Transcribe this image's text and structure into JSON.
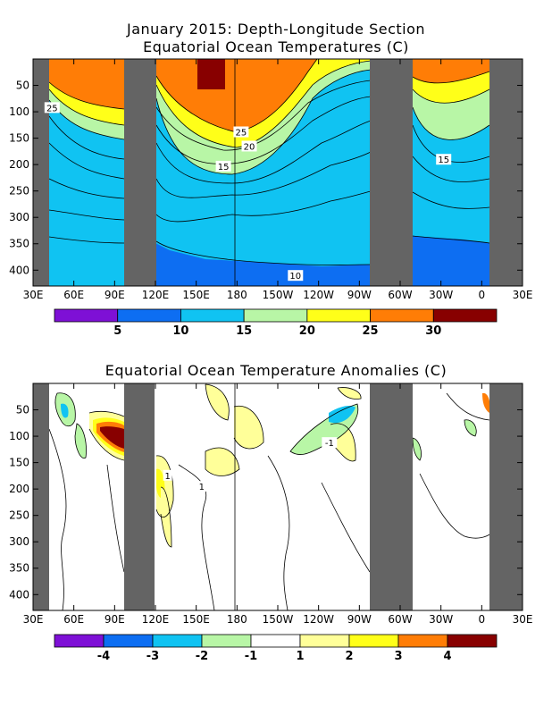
{
  "chart_data": [
    {
      "type": "heatmap",
      "title": "January 2015: Depth-Longitude Section",
      "subtitle": "Equatorial Ocean Temperatures (C)",
      "x_tick_labels": [
        "30E",
        "60E",
        "90E",
        "120E",
        "150E",
        "180",
        "150W",
        "120W",
        "90W",
        "60W",
        "30W",
        "0",
        "30E"
      ],
      "x_tick_lon": [
        30,
        60,
        90,
        120,
        150,
        180,
        210,
        240,
        270,
        300,
        330,
        360,
        390
      ],
      "y_tick_labels": [
        "50",
        "100",
        "150",
        "200",
        "250",
        "300",
        "350",
        "400"
      ],
      "y_ticks": [
        50,
        100,
        150,
        200,
        250,
        300,
        350,
        400
      ],
      "xlim": [
        30,
        390
      ],
      "ylim": [
        0,
        430
      ],
      "land_lon_ranges": [
        [
          30,
          44
        ],
        [
          98,
          121
        ],
        [
          287,
          303
        ],
        [
          297,
          330
        ],
        [
          362,
          390
        ]
      ],
      "colorbar_levels": [
        5,
        10,
        15,
        20,
        25,
        30
      ],
      "colorbar_labels": [
        "5",
        "10",
        "15",
        "20",
        "25",
        "30"
      ],
      "colorbar_colors": [
        "#7e10d6",
        "#0d6ef2",
        "#10c3f2",
        "#b8f6a6",
        "#ffff19",
        "#ff7d06",
        "#880000"
      ],
      "contour_labels": [
        {
          "text": "25",
          "lon": 44,
          "depth": 92
        },
        {
          "text": "25",
          "lon": 183,
          "depth": 138
        },
        {
          "text": "20",
          "lon": 189,
          "depth": 165
        },
        {
          "text": "15",
          "lon": 170,
          "depth": 203
        },
        {
          "text": "15",
          "lon": 332,
          "depth": 190
        },
        {
          "text": "10",
          "lon": 223,
          "depth": 410
        }
      ]
    },
    {
      "type": "heatmap",
      "title": "Equatorial Ocean Temperature Anomalies (C)",
      "x_tick_labels": [
        "30E",
        "60E",
        "90E",
        "120E",
        "150E",
        "180",
        "150W",
        "120W",
        "90W",
        "60W",
        "30W",
        "0",
        "30E"
      ],
      "x_tick_lon": [
        30,
        60,
        90,
        120,
        150,
        180,
        210,
        240,
        270,
        300,
        330,
        360,
        390
      ],
      "y_tick_labels": [
        "50",
        "100",
        "150",
        "200",
        "250",
        "300",
        "350",
        "400"
      ],
      "y_ticks": [
        50,
        100,
        150,
        200,
        250,
        300,
        350,
        400
      ],
      "xlim": [
        30,
        390
      ],
      "ylim": [
        0,
        430
      ],
      "land_lon_ranges": [
        [
          30,
          44
        ],
        [
          98,
          121
        ],
        [
          287,
          303
        ],
        [
          297,
          330
        ],
        [
          362,
          390
        ]
      ],
      "colorbar_levels": [
        -4,
        -3,
        -2,
        -1,
        1,
        2,
        3,
        4
      ],
      "colorbar_labels": [
        "-4",
        "-3",
        "-2",
        "-1",
        "1",
        "2",
        "3",
        "4"
      ],
      "colorbar_colors": [
        "#7e10d6",
        "#0d6ef2",
        "#10c3f2",
        "#b8f6a6",
        "#ffffff",
        "#ffff99",
        "#ffff19",
        "#ff7d06",
        "#880000"
      ],
      "contour_labels": [
        {
          "text": "-1",
          "lon": 248,
          "depth": 112
        },
        {
          "text": "1",
          "lon": 129,
          "depth": 174
        },
        {
          "text": "1",
          "lon": 154,
          "depth": 195
        }
      ]
    }
  ]
}
